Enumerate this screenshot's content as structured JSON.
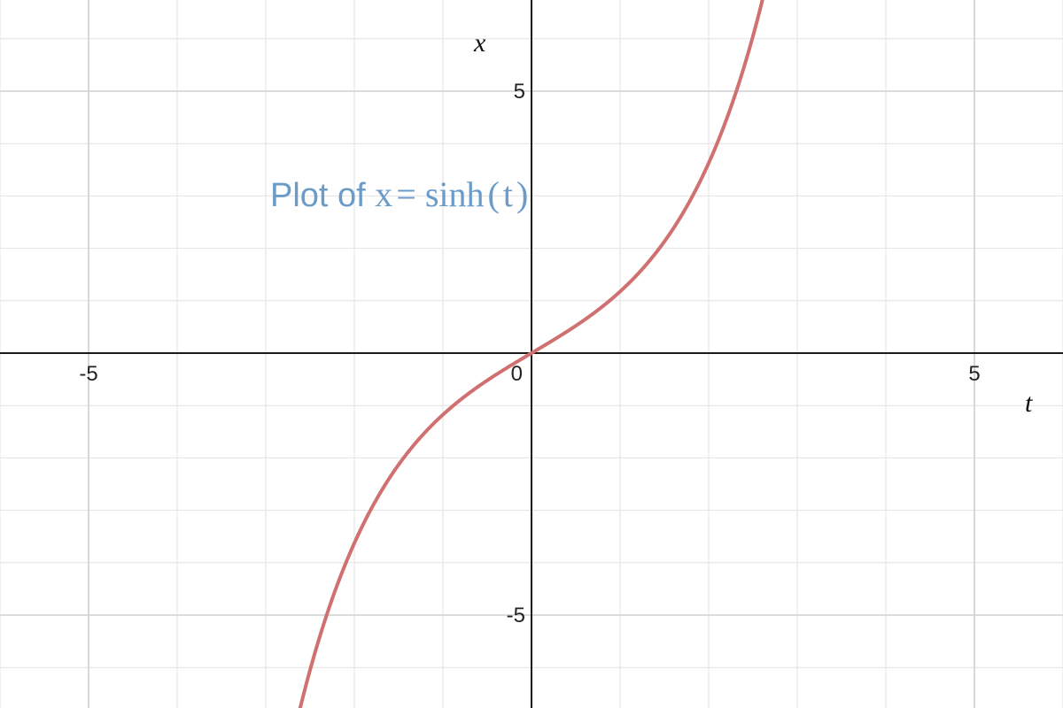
{
  "chart_data": {
    "type": "line",
    "title": {
      "prefix": "Plot of ",
      "var_x": "x",
      "equals": " = ",
      "func": "sinh",
      "open": "(",
      "var_t": "t",
      "close": ")"
    },
    "xlabel": "t",
    "ylabel": "x",
    "xlim": [
      -6,
      6
    ],
    "ylim": [
      -6.75,
      6.75
    ],
    "grid": true,
    "grid_minor_step": 1,
    "x_ticks": [
      {
        "value": -5,
        "label": "-5"
      },
      {
        "value": 0,
        "label": "0"
      },
      {
        "value": 5,
        "label": "5"
      }
    ],
    "y_ticks": [
      {
        "value": 5,
        "label": "5"
      },
      {
        "value": -5,
        "label": "-5"
      }
    ],
    "series": [
      {
        "function": "sinh",
        "color": "#d07070",
        "x": [
          -2.6,
          -2.4,
          -2.2,
          -2.0,
          -1.8,
          -1.6,
          -1.4,
          -1.2,
          -1.0,
          -0.8,
          -0.6,
          -0.4,
          -0.2,
          0.0,
          0.2,
          0.4,
          0.6,
          0.8,
          1.0,
          1.2,
          1.4,
          1.6,
          1.8,
          2.0,
          2.2,
          2.4,
          2.6
        ],
        "y": [
          -6.695,
          -5.466,
          -4.457,
          -3.627,
          -2.942,
          -2.376,
          -1.904,
          -1.509,
          -1.175,
          -0.888,
          -0.637,
          -0.411,
          -0.201,
          0.0,
          0.201,
          0.411,
          0.637,
          0.888,
          1.175,
          1.509,
          1.904,
          2.376,
          2.942,
          3.627,
          4.457,
          5.466,
          6.695
        ]
      }
    ],
    "colors": {
      "title": "#6b9bc8",
      "grid_minor": "#e2e2e2",
      "grid_major": "#cfcfcf",
      "axis": "#1a1a1a"
    }
  }
}
